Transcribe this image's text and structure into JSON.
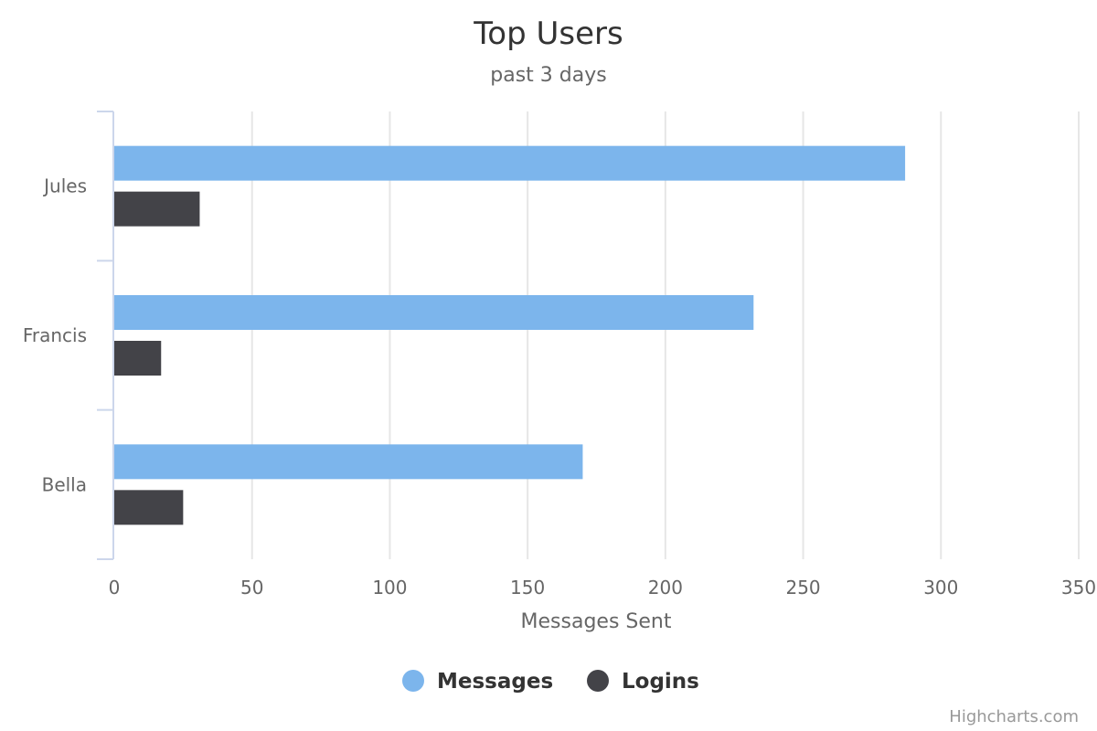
{
  "chart_data": {
    "type": "bar",
    "orientation": "horizontal",
    "title": "Top Users",
    "subtitle": "past 3 days",
    "categories": [
      "Jules",
      "Francis",
      "Bella"
    ],
    "series": [
      {
        "name": "Messages",
        "color": "#7cb5ec",
        "values": [
          287,
          232,
          170
        ]
      },
      {
        "name": "Logins",
        "color": "#434348",
        "values": [
          31,
          17,
          25
        ]
      }
    ],
    "xlabel": "Messages Sent",
    "ylabel": "",
    "xlim": [
      0,
      350
    ],
    "x_ticks": [
      0,
      50,
      100,
      150,
      200,
      250,
      300,
      350
    ],
    "grid": true,
    "legend_position": "bottom",
    "credits": "Highcharts.com"
  }
}
